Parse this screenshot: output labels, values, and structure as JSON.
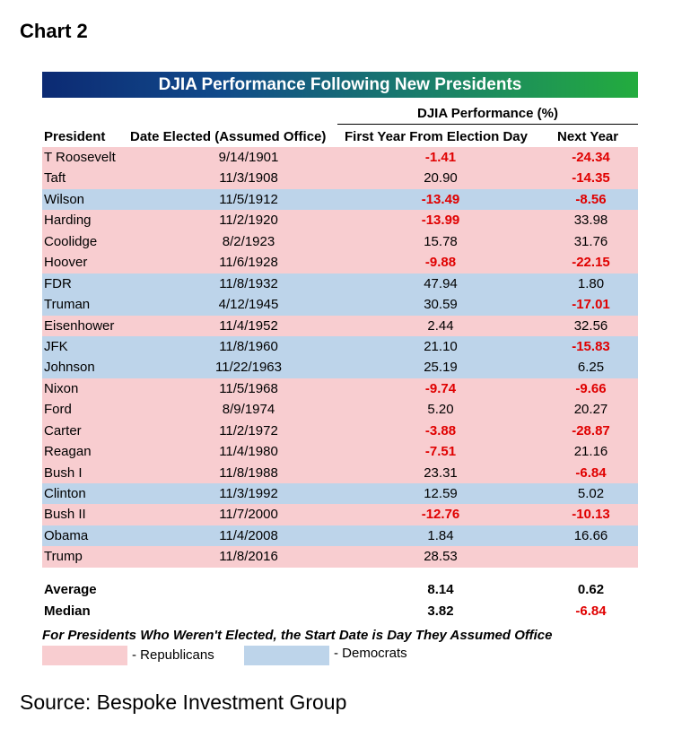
{
  "chart_label": "Chart 2",
  "chart_data": {
    "type": "table",
    "title": "DJIA Performance Following New Presidents",
    "group_header": "DJIA Performance (%)",
    "columns": [
      "President",
      "Date Elected (Assumed Office)",
      "First Year From Election Day",
      "Next Year"
    ],
    "rows": [
      {
        "president": "T Roosevelt",
        "date": "9/14/1901",
        "first_year": "-1.41",
        "next_year": "-24.34",
        "party": "Republican"
      },
      {
        "president": "Taft",
        "date": "11/3/1908",
        "first_year": "20.90",
        "next_year": "-14.35",
        "party": "Republican"
      },
      {
        "president": "Wilson",
        "date": "11/5/1912",
        "first_year": "-13.49",
        "next_year": "-8.56",
        "party": "Democrat"
      },
      {
        "president": "Harding",
        "date": "11/2/1920",
        "first_year": "-13.99",
        "next_year": "33.98",
        "party": "Republican"
      },
      {
        "president": "Coolidge",
        "date": "8/2/1923",
        "first_year": "15.78",
        "next_year": "31.76",
        "party": "Republican"
      },
      {
        "president": "Hoover",
        "date": "11/6/1928",
        "first_year": "-9.88",
        "next_year": "-22.15",
        "party": "Republican"
      },
      {
        "president": "FDR",
        "date": "11/8/1932",
        "first_year": "47.94",
        "next_year": "1.80",
        "party": "Democrat"
      },
      {
        "president": "Truman",
        "date": "4/12/1945",
        "first_year": "30.59",
        "next_year": "-17.01",
        "party": "Democrat"
      },
      {
        "president": "Eisenhower",
        "date": "11/4/1952",
        "first_year": "2.44",
        "next_year": "32.56",
        "party": "Republican"
      },
      {
        "president": "JFK",
        "date": "11/8/1960",
        "first_year": "21.10",
        "next_year": "-15.83",
        "party": "Democrat"
      },
      {
        "president": "Johnson",
        "date": "11/22/1963",
        "first_year": "25.19",
        "next_year": "6.25",
        "party": "Democrat"
      },
      {
        "president": "Nixon",
        "date": "11/5/1968",
        "first_year": "-9.74",
        "next_year": "-9.66",
        "party": "Republican"
      },
      {
        "president": "Ford",
        "date": "8/9/1974",
        "first_year": "5.20",
        "next_year": "20.27",
        "party": "Republican"
      },
      {
        "president": "Carter",
        "date": "11/2/1972",
        "first_year": "-3.88",
        "next_year": "-28.87",
        "party": "Republican"
      },
      {
        "president": "Reagan",
        "date": "11/4/1980",
        "first_year": "-7.51",
        "next_year": "21.16",
        "party": "Republican"
      },
      {
        "president": "Bush I",
        "date": "11/8/1988",
        "first_year": "23.31",
        "next_year": "-6.84",
        "party": "Republican"
      },
      {
        "president": "Clinton",
        "date": "11/3/1992",
        "first_year": "12.59",
        "next_year": "5.02",
        "party": "Democrat"
      },
      {
        "president": "Bush II",
        "date": "11/7/2000",
        "first_year": "-12.76",
        "next_year": "-10.13",
        "party": "Republican"
      },
      {
        "president": "Obama",
        "date": "11/4/2008",
        "first_year": "1.84",
        "next_year": "16.66",
        "party": "Democrat"
      },
      {
        "president": "Trump",
        "date": "11/8/2016",
        "first_year": "28.53",
        "next_year": "",
        "party": "Republican"
      }
    ],
    "summary": [
      {
        "label": "Average",
        "first_year": "8.14",
        "next_year": "0.62"
      },
      {
        "label": "Median",
        "first_year": "3.82",
        "next_year": "-6.84"
      }
    ]
  },
  "footnote": "For Presidents Who Weren't Elected, the Start Date is Day They Assumed Office",
  "legend": [
    {
      "label": "- Republicans",
      "color": "#f8cdd0"
    },
    {
      "label": "- Democrats",
      "color": "#bdd4ea"
    }
  ],
  "source": "Source: Bespoke Investment Group"
}
